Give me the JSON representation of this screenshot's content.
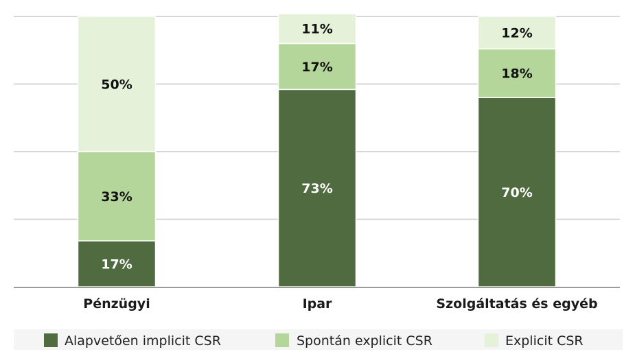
{
  "chart_data": {
    "type": "bar",
    "stacked": true,
    "categories": [
      "Pénzügyi",
      "Ipar",
      "Szolgáltatás és egyéb"
    ],
    "series": [
      {
        "name": "Alapvetően implicit CSR",
        "values": [
          17,
          73,
          70
        ],
        "labels": [
          "17%",
          "73%",
          "70%"
        ],
        "color": "#4f6b3f"
      },
      {
        "name": "Spontán explicit CSR",
        "values": [
          33,
          17,
          18
        ],
        "labels": [
          "33%",
          "17%",
          "18%"
        ],
        "color": "#b4d69a"
      },
      {
        "name": "Explicit CSR",
        "values": [
          50,
          11,
          12
        ],
        "labels": [
          "50%",
          "11%",
          "12%"
        ],
        "color": "#e6f1da"
      }
    ],
    "ylim": [
      0,
      100
    ],
    "grid": true,
    "legend_position": "bottom",
    "title": "",
    "xlabel": "",
    "ylabel": ""
  },
  "colors": {
    "gridline": "#c8c8c8",
    "axis": "#9a9a9a",
    "label_dark": "#111111",
    "label_light": "#ffffff"
  }
}
